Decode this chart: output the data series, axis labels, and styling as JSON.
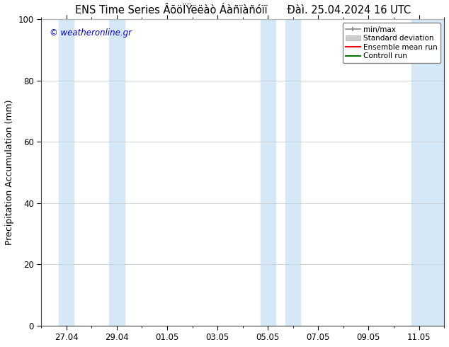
{
  "title_left": "ENS Time Series ÂõöÏŸëëàò Áàñïàñóïï",
  "title_right": "Đàì. 25.04.2024 16 UTC",
  "ylabel": "Precipitation Accumulation (mm)",
  "ylim": [
    0,
    100
  ],
  "yticks": [
    0,
    20,
    40,
    60,
    80,
    100
  ],
  "xtick_labels": [
    "27.04",
    "29.04",
    "01.05",
    "03.05",
    "05.05",
    "07.05",
    "09.05",
    "11.05"
  ],
  "xtick_positions": [
    1,
    3,
    5,
    7,
    9,
    11,
    13,
    15
  ],
  "xmin": 0,
  "xmax": 16,
  "watermark": "© weatheronline.gr",
  "watermark_color": "#0000cc",
  "background_color": "#ffffff",
  "plot_bg_color": "#ffffff",
  "band_color": "#d4e8f7",
  "shaded_bands": [
    [
      0.7,
      1.3
    ],
    [
      2.7,
      3.3
    ],
    [
      8.7,
      9.3
    ],
    [
      9.7,
      10.3
    ],
    [
      14.7,
      16.2
    ]
  ],
  "legend_labels": [
    "min/max",
    "Standard deviation",
    "Ensemble mean run",
    "Controll run"
  ],
  "legend_line_colors": [
    "#999999",
    "#cccccc",
    "#ff0000",
    "#007700"
  ],
  "grid_color": "#cccccc",
  "tick_color": "#000000",
  "font_size_title": 10.5,
  "font_size_ylabel": 9,
  "font_size_ticks": 8.5,
  "font_size_legend": 7.5,
  "font_size_watermark": 8.5
}
